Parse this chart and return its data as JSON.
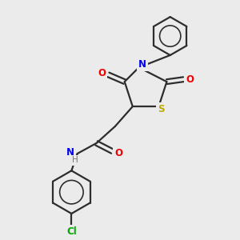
{
  "background_color": "#ebebeb",
  "bond_color": "#2d2d2d",
  "atom_colors": {
    "N": "#0000ee",
    "O": "#ee0000",
    "S": "#bbaa00",
    "Cl": "#00aa00",
    "H": "#777777",
    "C": "#2d2d2d"
  },
  "figsize": [
    3.0,
    3.0
  ],
  "dpi": 100,
  "lw": 1.6
}
